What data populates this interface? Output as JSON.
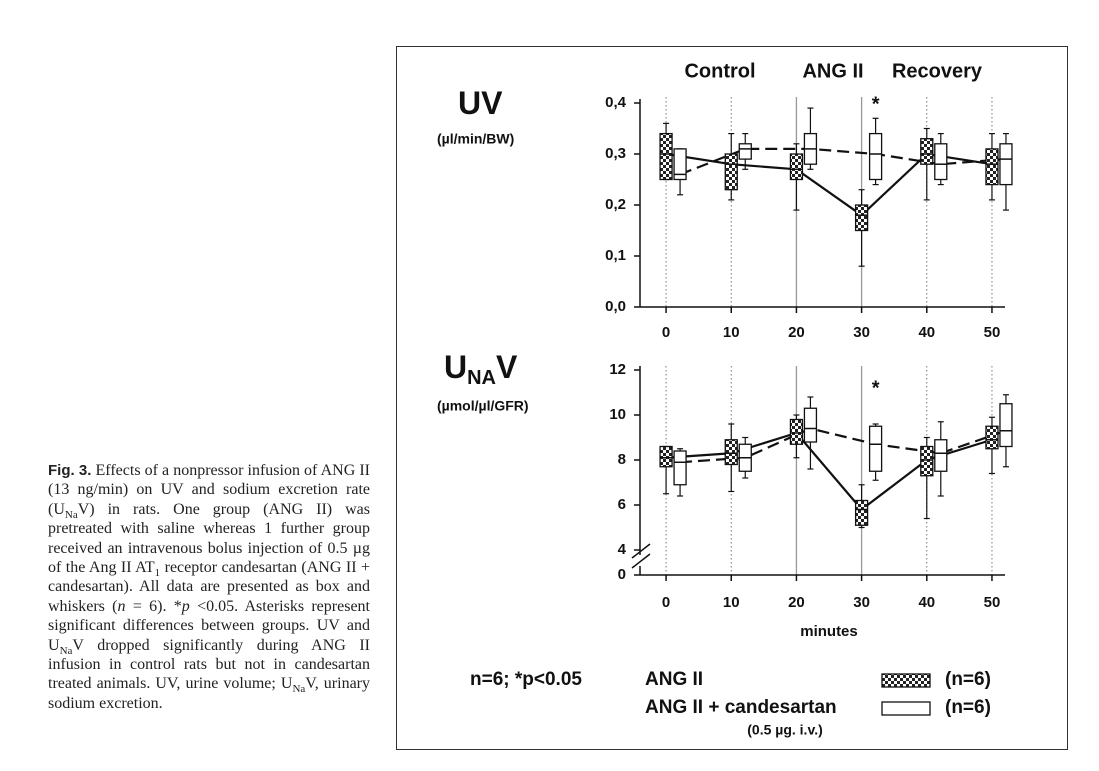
{
  "phases": [
    "Control",
    "ANG II",
    "Recovery"
  ],
  "chart_data": [
    {
      "type": "box",
      "title": "UV",
      "units": "(µl/min/BW)",
      "x": [
        0,
        10,
        20,
        30,
        40,
        50
      ],
      "xlim": [
        -4,
        52
      ],
      "xticks": [
        0,
        10,
        20,
        30,
        40,
        50
      ],
      "ylim": [
        0,
        0.4
      ],
      "yticks": [
        {
          "value": 0,
          "label": "0,0"
        },
        {
          "value": 0.1,
          "label": "0,1"
        },
        {
          "value": 0.2,
          "label": "0,2"
        },
        {
          "value": 0.3,
          "label": "0,3"
        },
        {
          "value": 0.4,
          "label": "0,4"
        }
      ],
      "dotted_lines": [
        0,
        10,
        40,
        50
      ],
      "solid_lines": [
        20,
        30
      ],
      "annotations": [
        {
          "x": 30,
          "text": "*"
        }
      ],
      "series": [
        {
          "style": "checkered",
          "line": "solid",
          "low": [
            0.25,
            0.21,
            0.19,
            0.08,
            0.21,
            0.21
          ],
          "q1": [
            0.25,
            0.23,
            0.25,
            0.15,
            0.28,
            0.24
          ],
          "median": [
            0.3,
            0.28,
            0.27,
            0.18,
            0.3,
            0.28
          ],
          "q3": [
            0.34,
            0.3,
            0.3,
            0.2,
            0.33,
            0.31
          ],
          "high": [
            0.36,
            0.34,
            0.32,
            0.23,
            0.35,
            0.34
          ]
        },
        {
          "style": "open",
          "line": "dashed",
          "low": [
            0.22,
            0.27,
            0.27,
            0.24,
            0.24,
            0.19
          ],
          "q1": [
            0.25,
            0.29,
            0.28,
            0.25,
            0.25,
            0.24
          ],
          "median": [
            0.26,
            0.31,
            0.31,
            0.3,
            0.28,
            0.29
          ],
          "q3": [
            0.31,
            0.32,
            0.34,
            0.34,
            0.32,
            0.32
          ],
          "high": [
            0.31,
            0.34,
            0.39,
            0.37,
            0.34,
            0.34
          ]
        }
      ]
    },
    {
      "type": "box",
      "title": "U",
      "title_sub": "NA",
      "title_tail": "V",
      "units": "(µmol/µl/GFR)",
      "xlabel": "minutes",
      "x": [
        0,
        10,
        20,
        30,
        40,
        50
      ],
      "xlim": [
        -4,
        52
      ],
      "xticks": [
        0,
        10,
        20,
        30,
        40,
        50
      ],
      "ylim": [
        0,
        12
      ],
      "axis_break": [
        0,
        4
      ],
      "yticks": [
        0,
        4,
        6,
        8,
        10,
        12
      ],
      "dotted_lines": [
        0,
        10,
        40,
        50
      ],
      "solid_lines": [
        20,
        30
      ],
      "annotations": [
        {
          "x": 30,
          "text": "*"
        }
      ],
      "series": [
        {
          "style": "checkered",
          "line": "solid",
          "low": [
            6.5,
            6.6,
            8.1,
            5.0,
            5.4,
            7.4
          ],
          "q1": [
            7.7,
            7.8,
            8.7,
            5.1,
            7.3,
            8.5
          ],
          "median": [
            8.1,
            8.3,
            9.2,
            5.8,
            8.0,
            8.9
          ],
          "q3": [
            8.6,
            8.9,
            9.8,
            6.2,
            8.6,
            9.5
          ],
          "high": [
            8.6,
            9.6,
            10.0,
            6.9,
            9.0,
            9.9
          ]
        },
        {
          "style": "open",
          "line": "dashed",
          "low": [
            6.4,
            7.2,
            7.6,
            7.1,
            6.4,
            7.7
          ],
          "q1": [
            6.9,
            7.5,
            8.8,
            7.5,
            7.5,
            8.6
          ],
          "median": [
            7.9,
            8.1,
            9.4,
            8.7,
            8.3,
            9.3
          ],
          "q3": [
            8.4,
            8.7,
            10.3,
            9.5,
            8.9,
            10.5
          ],
          "high": [
            8.5,
            9.0,
            10.8,
            9.6,
            9.7,
            10.9
          ]
        }
      ]
    }
  ],
  "stats_note": "n=6; *p<0.05",
  "legend": [
    {
      "label": "ANG II",
      "n": "(n=6)",
      "style": "checkered"
    },
    {
      "label": "ANG II + candesartan",
      "n": "(n=6)",
      "style": "open",
      "note": "(0.5 µg. i.v.)"
    }
  ],
  "caption": {
    "label": "Fig. 3.",
    "runs": [
      {
        "t": " Effects of a nonpressor infusion of ANG II (13 ng/min) on UV and sodium excretion rate (U"
      },
      {
        "sub": "Na"
      },
      {
        "t": "V) in rats. One group (ANG II) was pretreated with saline whereas 1 further group received an intravenous bolus injection of 0.5 µg of the Ang II AT"
      },
      {
        "sub": "1"
      },
      {
        "t": " receptor candesartan (ANG II + candesartan). All data are presented as box and whiskers ("
      },
      {
        "i": "n"
      },
      {
        "t": " = 6). *"
      },
      {
        "i": "p"
      },
      {
        "t": " <0.05. Asterisks represent significant differences between groups. UV and U"
      },
      {
        "sub": "Na"
      },
      {
        "t": "V dropped significantly during ANG II infusion in control rats but not in candesartan treated animals. UV, urine volume; U"
      },
      {
        "sub": "Na"
      },
      {
        "t": "V, urinary sodium excretion."
      }
    ]
  }
}
